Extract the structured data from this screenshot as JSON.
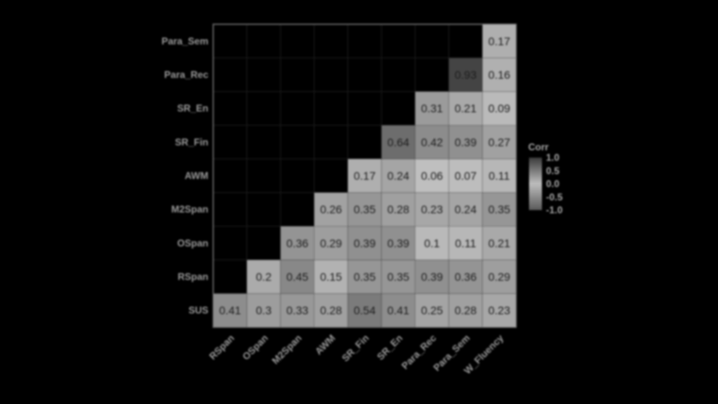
{
  "chart_data": {
    "type": "heatmap",
    "title": "",
    "x_labels": [
      "RSpan",
      "OSpan",
      "M2Span",
      "AWM",
      "SR_Fin",
      "SR_En",
      "Para_Rec",
      "Para_Sem",
      "W_Fluency"
    ],
    "y_labels": [
      "SUS",
      "RSpan",
      "OSpan",
      "M2Span",
      "AWM",
      "SR_Fin",
      "SR_En",
      "Para_Rec",
      "Para_Sem"
    ],
    "cells": [
      {
        "row": "SUS",
        "values": [
          "0.41",
          "0.3",
          "0.33",
          "0.28",
          "0.54",
          "0.41",
          "0.25",
          "0.28",
          "0.23"
        ]
      },
      {
        "row": "RSpan",
        "values": [
          "",
          "0.2",
          "0.45",
          "0.15",
          "0.35",
          "0.35",
          "0.39",
          "0.36",
          "0.29"
        ]
      },
      {
        "row": "OSpan",
        "values": [
          "",
          "",
          "0.36",
          "0.29",
          "0.39",
          "0.39",
          "0.1",
          "0.11",
          "0.21"
        ]
      },
      {
        "row": "M2Span",
        "values": [
          "",
          "",
          "",
          "0.26",
          "0.35",
          "0.28",
          "0.23",
          "0.24",
          "0.35"
        ]
      },
      {
        "row": "AWM",
        "values": [
          "",
          "",
          "",
          "",
          "0.17",
          "0.24",
          "0.06",
          "0.07",
          "0.11"
        ]
      },
      {
        "row": "SR_Fin",
        "values": [
          "",
          "",
          "",
          "",
          "",
          "0.64",
          "0.42",
          "0.39",
          "0.27"
        ]
      },
      {
        "row": "SR_En",
        "values": [
          "",
          "",
          "",
          "",
          "",
          "",
          "0.31",
          "0.21",
          "0.09"
        ]
      },
      {
        "row": "Para_Rec",
        "values": [
          "",
          "",
          "",
          "",
          "",
          "",
          "",
          "0.93",
          "0.16"
        ]
      },
      {
        "row": "Para_Sem",
        "values": [
          "",
          "",
          "",
          "",
          "",
          "",
          "",
          "",
          "0.17"
        ]
      }
    ],
    "legend": {
      "title": "Corr",
      "ticks": [
        "1.0",
        "0.5",
        "0.0",
        "-0.5",
        "-1.0"
      ],
      "range": [
        -1,
        1
      ],
      "position": "right"
    },
    "grid": true,
    "colors": {
      "background": "#000000",
      "high": "#3a3a3a",
      "mid": "#bdbdbd",
      "low": "#5a5a5a"
    }
  }
}
